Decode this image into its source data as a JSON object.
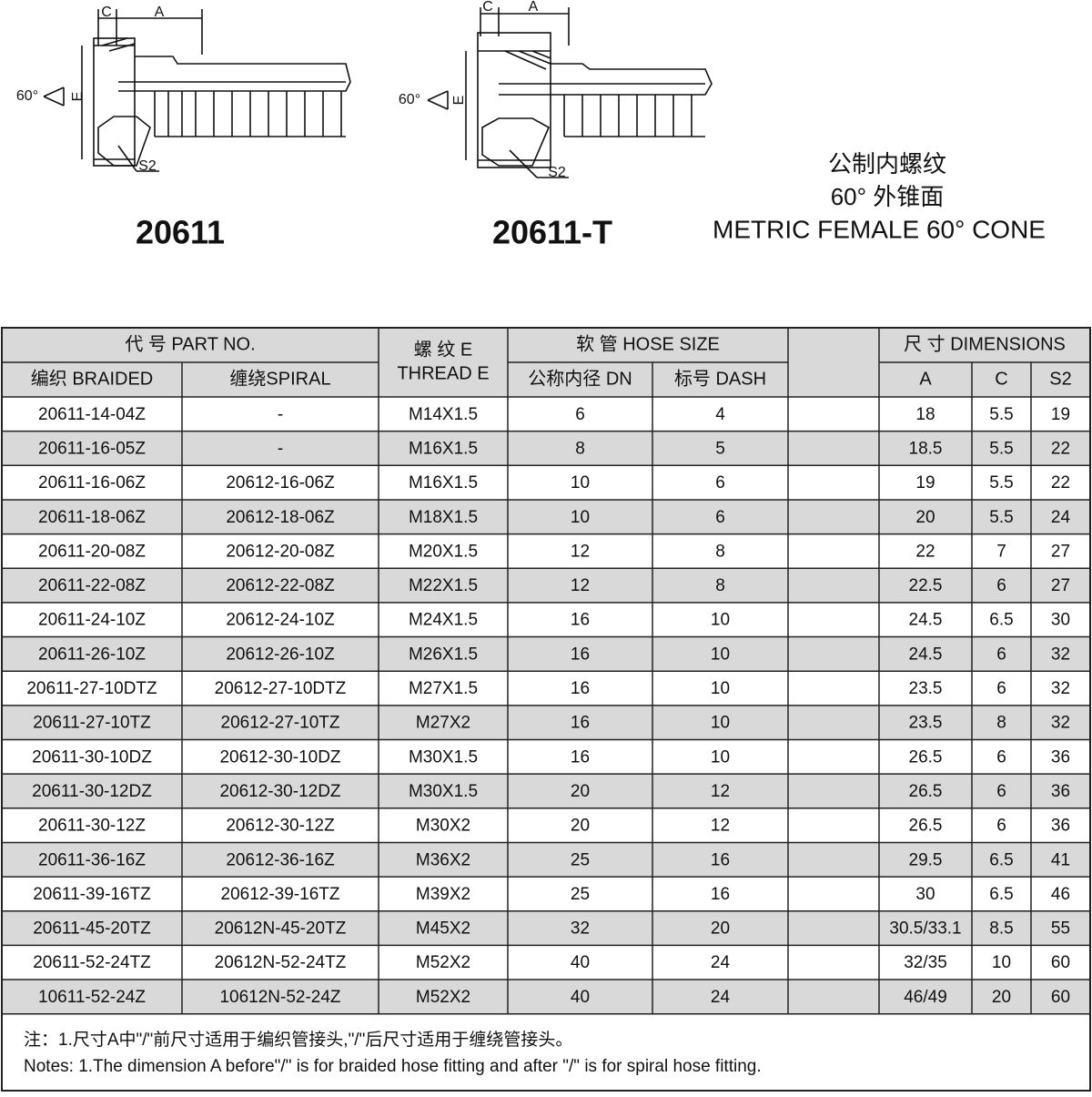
{
  "drawings": [
    {
      "model": "20611",
      "labels": {
        "c": "C",
        "a": "A",
        "angle": "60°",
        "e": "E",
        "s2": "S2"
      }
    },
    {
      "model": "20611-T",
      "labels": {
        "c": "C",
        "a": "A",
        "angle": "60°",
        "e": "E",
        "s2": "S2"
      }
    }
  ],
  "title": {
    "zh_line1": "公制内螺纹",
    "zh_line2": "60° 外锥面",
    "en": "METRIC FEMALE 60° CONE"
  },
  "table": {
    "header": {
      "part_no": "代 号 PART NO.",
      "thread_line1": "螺 纹 E",
      "thread_line2": "THREAD E",
      "hose_size": "软 管 HOSE SIZE",
      "dimensions": "尺 寸 DIMENSIONS",
      "braided": "编织 BRAIDED",
      "spiral": "缠绕SPIRAL",
      "dn": "公称内径 DN",
      "dash": "标号 DASH",
      "a": "A",
      "c": "C",
      "s2": "S2"
    },
    "rows": [
      [
        "20611-14-04Z",
        "-",
        "M14X1.5",
        "6",
        "4",
        "18",
        "5.5",
        "19"
      ],
      [
        "20611-16-05Z",
        "-",
        "M16X1.5",
        "8",
        "5",
        "18.5",
        "5.5",
        "22"
      ],
      [
        "20611-16-06Z",
        "20612-16-06Z",
        "M16X1.5",
        "10",
        "6",
        "19",
        "5.5",
        "22"
      ],
      [
        "20611-18-06Z",
        "20612-18-06Z",
        "M18X1.5",
        "10",
        "6",
        "20",
        "5.5",
        "24"
      ],
      [
        "20611-20-08Z",
        "20612-20-08Z",
        "M20X1.5",
        "12",
        "8",
        "22",
        "7",
        "27"
      ],
      [
        "20611-22-08Z",
        "20612-22-08Z",
        "M22X1.5",
        "12",
        "8",
        "22.5",
        "6",
        "27"
      ],
      [
        "20611-24-10Z",
        "20612-24-10Z",
        "M24X1.5",
        "16",
        "10",
        "24.5",
        "6.5",
        "30"
      ],
      [
        "20611-26-10Z",
        "20612-26-10Z",
        "M26X1.5",
        "16",
        "10",
        "24.5",
        "6",
        "32"
      ],
      [
        "20611-27-10DTZ",
        "20612-27-10DTZ",
        "M27X1.5",
        "16",
        "10",
        "23.5",
        "6",
        "32"
      ],
      [
        "20611-27-10TZ",
        "20612-27-10TZ",
        "M27X2",
        "16",
        "10",
        "23.5",
        "8",
        "32"
      ],
      [
        "20611-30-10DZ",
        "20612-30-10DZ",
        "M30X1.5",
        "16",
        "10",
        "26.5",
        "6",
        "36"
      ],
      [
        "20611-30-12DZ",
        "20612-30-12DZ",
        "M30X1.5",
        "20",
        "12",
        "26.5",
        "6",
        "36"
      ],
      [
        "20611-30-12Z",
        "20612-30-12Z",
        "M30X2",
        "20",
        "12",
        "26.5",
        "6",
        "36"
      ],
      [
        "20611-36-16Z",
        "20612-36-16Z",
        "M36X2",
        "25",
        "16",
        "29.5",
        "6.5",
        "41"
      ],
      [
        "20611-39-16TZ",
        "20612-39-16TZ",
        "M39X2",
        "25",
        "16",
        "30",
        "6.5",
        "46"
      ],
      [
        "20611-45-20TZ",
        "20612N-45-20TZ",
        "M45X2",
        "32",
        "20",
        "30.5/33.1",
        "8.5",
        "55"
      ],
      [
        "20611-52-24TZ",
        "20612N-52-24TZ",
        "M52X2",
        "40",
        "24",
        "32/35",
        "10",
        "60"
      ],
      [
        "10611-52-24Z",
        "10612N-52-24Z",
        "M52X2",
        "40",
        "24",
        "46/49",
        "20",
        "60"
      ]
    ]
  },
  "notes": [
    "注：1.尺寸A中\"/\"前尺寸适用于编织管接头,\"/\"后尺寸适用于缠绕管接头。",
    "Notes: 1.The dimension A before\"/\" is for braided hose fitting and after \"/\" is for spiral hose fitting."
  ]
}
